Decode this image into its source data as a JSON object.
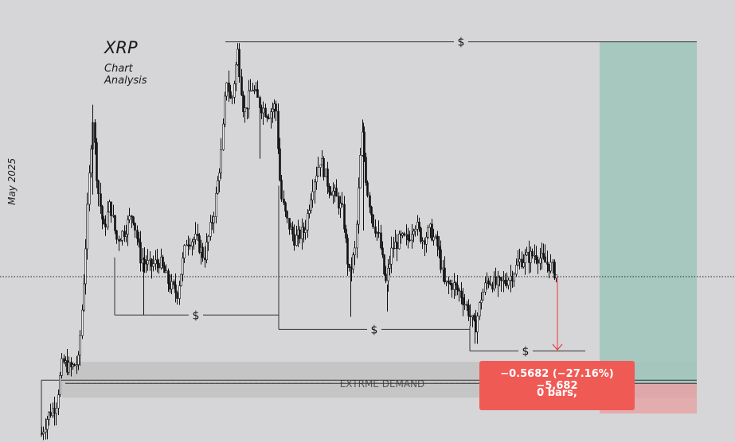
{
  "chart_data": {
    "type": "candlestick",
    "title": "XRP",
    "subtitle": "Chart Analysis",
    "side_note": "May 2025",
    "ylim": [
      1.2,
      3.5
    ],
    "current_price": 2.0932,
    "liquidity_marker": "$",
    "liquidity_levels": [
      {
        "price": 3.4,
        "marker": "$"
      },
      {
        "price": 1.88,
        "marker": "$"
      },
      {
        "price": 1.8,
        "marker": "$"
      },
      {
        "price": 1.68,
        "marker": "$"
      }
    ],
    "demand_zone": {
      "label": "EXTRME DEMAND",
      "top": 1.62,
      "bottom": 1.42,
      "mid": 1.5
    },
    "measurement": {
      "change": "−0.5682 (−27.16%) −5,682",
      "bars": "0 bars,",
      "from_price": 2.0932,
      "to_price": 1.525
    },
    "colors": {
      "background": "#d6d5d7",
      "candles": "#111111",
      "target_zone": "#9ec5bb",
      "stop_zone": "#e89a9c",
      "demand_zone": "#c3c3c4",
      "measure_box": "#f05a55",
      "measure_arrow": "#e83c3c"
    }
  }
}
